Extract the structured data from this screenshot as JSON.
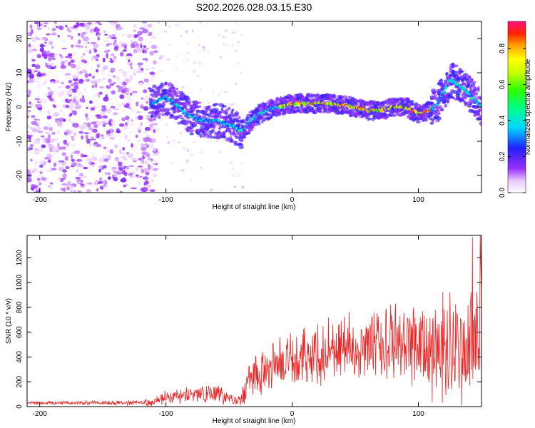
{
  "chart_data": [
    {
      "type": "heatmap",
      "title": "S202.2026.028.03.15.E30",
      "xlabel": "Height of straight line (km)",
      "ylabel": "Frequency (Hz)",
      "xlim": [
        -210,
        150
      ],
      "ylim": [
        -25,
        25
      ],
      "xticks": [
        -200,
        -100,
        0,
        100
      ],
      "yticks": [
        -20,
        -10,
        0,
        10,
        20
      ],
      "colorbar": {
        "label": "Normalized spectral amplitude",
        "range": [
          0,
          0.95
        ],
        "ticks": [
          0.0,
          0.2,
          0.4,
          0.6,
          0.8
        ]
      },
      "ridge": {
        "x": [
          -110,
          -100,
          -90,
          -80,
          -70,
          -60,
          -50,
          -45,
          -40,
          -35,
          -30,
          -20,
          -10,
          0,
          10,
          20,
          30,
          40,
          50,
          60,
          70,
          80,
          90,
          100,
          110,
          115,
          120,
          125,
          130,
          140,
          150
        ],
        "y": [
          1,
          3,
          0,
          -3,
          -4,
          -4,
          -5,
          -6,
          -7,
          -5,
          -3,
          -1,
          0,
          1,
          1,
          1,
          1,
          0.5,
          0,
          -1,
          -1,
          0,
          0,
          -2,
          -1,
          1,
          4,
          8,
          7,
          4,
          0
        ]
      }
    },
    {
      "type": "line",
      "xlabel": "Height of straight line (km)",
      "ylabel": "SNR (10 * v/v)",
      "xlim": [
        -210,
        150
      ],
      "ylim": [
        0,
        1380
      ],
      "xticks": [
        -200,
        -100,
        0,
        100
      ],
      "yticks": [
        0,
        200,
        400,
        600,
        800,
        1000,
        1200
      ],
      "series": [
        {
          "name": "SNR",
          "color": "#ee2222",
          "trend_x": [
            -210,
            -120,
            -110,
            -100,
            -80,
            -70,
            -60,
            -50,
            -42,
            -35,
            -30,
            -20,
            -10,
            0,
            20,
            40,
            60,
            80,
            100,
            120,
            130,
            140,
            150
          ],
          "trend_y": [
            30,
            30,
            40,
            80,
            90,
            100,
            110,
            60,
            40,
            200,
            270,
            300,
            330,
            380,
            420,
            470,
            500,
            510,
            500,
            470,
            460,
            450,
            460
          ],
          "amplitude_y": [
            10,
            15,
            30,
            45,
            55,
            60,
            70,
            40,
            30,
            120,
            150,
            160,
            170,
            180,
            200,
            220,
            240,
            260,
            280,
            350,
            400,
            420,
            450
          ],
          "peak_x": 149,
          "peak_y": 1380
        }
      ]
    }
  ]
}
